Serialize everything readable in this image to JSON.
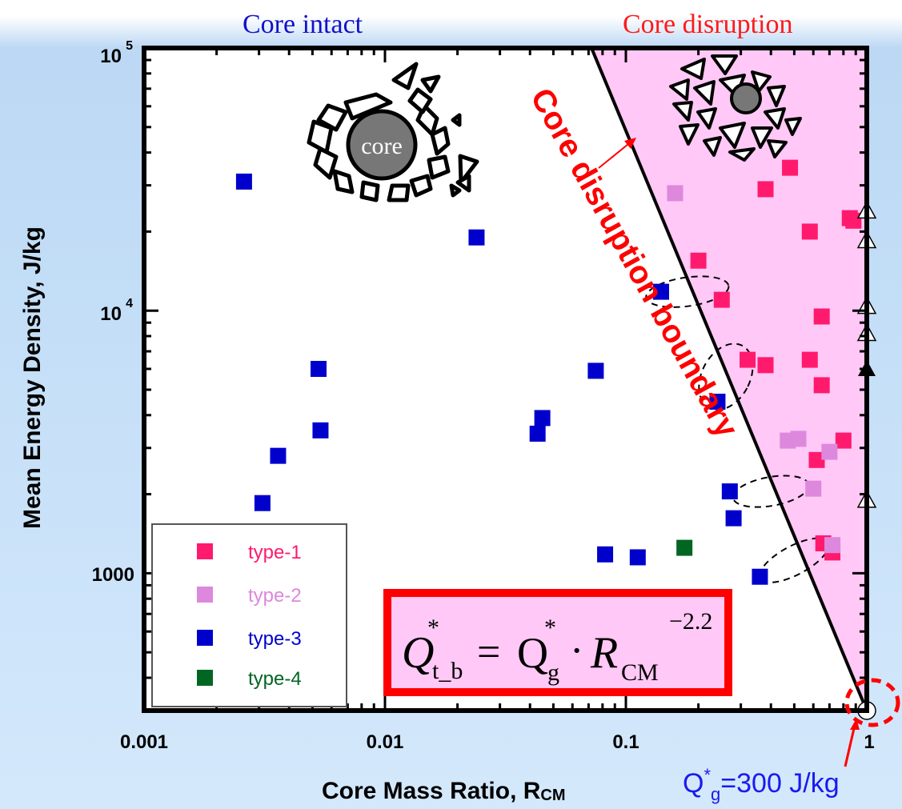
{
  "chart_data": {
    "type": "scatter",
    "title": "",
    "xlabel": "Core Mass Ratio, R",
    "xlabel_sub": "CM",
    "ylabel": "Mean Energy Density, J/kg",
    "x_scale": "log",
    "y_scale": "log",
    "xlim": [
      0.001,
      1
    ],
    "ylim": [
      300,
      100000
    ],
    "x_ticks": [
      {
        "value": 0.001,
        "label": "0.001"
      },
      {
        "value": 0.01,
        "label": "0.01"
      },
      {
        "value": 0.1,
        "label": "0.1"
      },
      {
        "value": 1,
        "label": "1"
      }
    ],
    "y_ticks": [
      {
        "value": 1000,
        "label": "1000"
      },
      {
        "value": 10000,
        "label": "10",
        "exp": "4"
      },
      {
        "value": 100000,
        "label": "10",
        "exp": "5"
      }
    ],
    "grid": false,
    "legend_position": "bottom-left",
    "series": [
      {
        "name": "type-1",
        "color": "#ff1a6e",
        "marker": "square",
        "x": [
          0.2,
          0.25,
          0.32,
          0.38,
          0.38,
          0.48,
          0.58,
          0.58,
          0.62,
          0.65,
          0.65,
          0.66,
          0.72,
          0.8,
          0.85,
          0.88
        ],
        "y": [
          15500,
          11000,
          6500,
          6200,
          29000,
          35000,
          20000,
          6500,
          2700,
          9500,
          5200,
          1300,
          1200,
          3200,
          22500,
          22000
        ]
      },
      {
        "name": "type-2",
        "color": "#dd88dd",
        "marker": "square",
        "x": [
          0.16,
          0.47,
          0.52,
          0.6,
          0.7,
          0.72
        ],
        "y": [
          28000,
          3200,
          3250,
          2100,
          2900,
          1280
        ]
      },
      {
        "name": "type-3",
        "color": "#0000cc",
        "marker": "square",
        "x": [
          0.0026,
          0.0031,
          0.0036,
          0.0053,
          0.0054,
          0.024,
          0.043,
          0.045,
          0.075,
          0.082,
          0.112,
          0.14,
          0.24,
          0.27,
          0.28,
          0.36
        ],
        "y": [
          31000,
          1850,
          2800,
          6000,
          3500,
          19000,
          3400,
          3900,
          5900,
          1180,
          1150,
          11800,
          4500,
          2050,
          1620,
          970
        ]
      },
      {
        "name": "type-4",
        "color": "#006622",
        "marker": "square",
        "x": [
          0.175
        ],
        "y": [
          1250
        ]
      },
      {
        "name": "",
        "color": "#ffffff",
        "marker": "triangle-open",
        "x": [
          1,
          1,
          1,
          1,
          1
        ],
        "y": [
          24000,
          18500,
          10400,
          8200,
          1900
        ]
      },
      {
        "name": "",
        "color": "#000000",
        "marker": "triangle-filled",
        "x": [
          1
        ],
        "y": [
          6000
        ]
      },
      {
        "name": "",
        "color": "#ffffff",
        "marker": "circle-open",
        "x": [
          1
        ],
        "y": [
          300
        ]
      }
    ],
    "boundary_line": {
      "x": [
        0.072,
        1
      ],
      "y": [
        100000,
        300
      ]
    },
    "ellipses": [
      {
        "x": 0.18,
        "y": 11800
      },
      {
        "x": 0.26,
        "y": 5600
      },
      {
        "x": 0.4,
        "y": 2050
      },
      {
        "x": 0.5,
        "y": 1120
      }
    ],
    "annotations": {
      "core_intact": "Core intact",
      "core_disruption": "Core disruption",
      "core_label": "core",
      "boundary_label": "Core disruption boundary",
      "qg_prefix": "Q",
      "qg_star": "*",
      "qg_sub": "g",
      "qg_value": "=300 J/kg"
    },
    "formula": {
      "lhs": "Q",
      "lhs_star": "*",
      "lhs_sub": "t_b",
      "eq": "=",
      "q": "Q",
      "q_star": "*",
      "q_sub": "g",
      "dot": "·",
      "r": "R",
      "r_sub": "CM",
      "exp": "−2.2"
    }
  },
  "colors": {
    "disruption_fill": "#ffc8f6",
    "boundary_red": "#ff0000",
    "intact_blue": "#1111cc"
  }
}
